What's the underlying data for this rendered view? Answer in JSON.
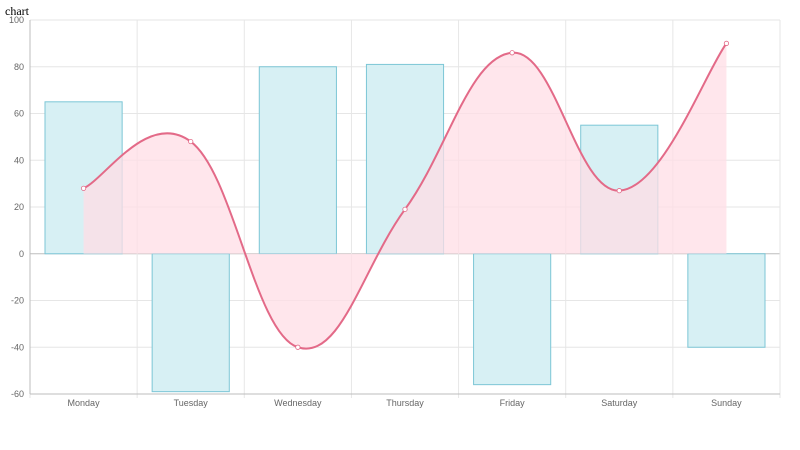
{
  "page": {
    "title": "chart"
  },
  "chart_data": {
    "type": "bar",
    "categories": [
      "Monday",
      "Tuesday",
      "Wednesday",
      "Thursday",
      "Friday",
      "Saturday",
      "Sunday"
    ],
    "series": [
      {
        "type": "bar",
        "values": [
          65,
          -59,
          80,
          81,
          -56,
          55,
          -40
        ],
        "fill": "#d7f0f4",
        "stroke": "#7cc6d6"
      },
      {
        "type": "area",
        "smooth": true,
        "values": [
          28,
          48,
          -40,
          19,
          86,
          27,
          90
        ],
        "fill": "#ffdde5",
        "stroke": "#e36a88"
      }
    ],
    "ylim": [
      -60,
      100
    ],
    "yticks": [
      -60,
      -40,
      -20,
      0,
      20,
      40,
      60,
      80,
      100
    ],
    "grid": true,
    "legend": false
  }
}
